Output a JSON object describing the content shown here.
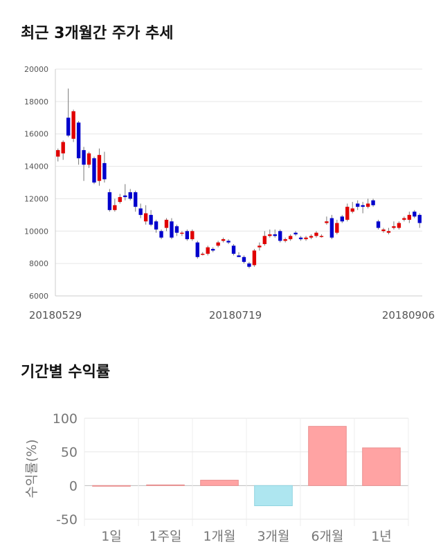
{
  "sections": {
    "price_title": "최근 3개월간 주가 추세",
    "returns_title": "기간별 수익률"
  },
  "chart_data": [
    {
      "type": "candlestick",
      "ylim": [
        6000,
        20000
      ],
      "yticks": [
        20000,
        18000,
        16000,
        14000,
        12000,
        10000,
        8000,
        6000
      ],
      "xticks": [
        "20180529",
        "20180719",
        "20180906"
      ],
      "colors": {
        "up": "#e00000",
        "down": "#0000cc"
      },
      "candles": [
        [
          14600,
          15000,
          14300,
          15100
        ],
        [
          14800,
          15500,
          14400,
          15600
        ],
        [
          17000,
          15900,
          15800,
          18800
        ],
        [
          15700,
          17400,
          15500,
          17500
        ],
        [
          16700,
          14500,
          14100,
          16800
        ],
        [
          15000,
          14100,
          13100,
          15200
        ],
        [
          14100,
          14800,
          13900,
          14900
        ],
        [
          14500,
          13000,
          12900,
          14600
        ],
        [
          13100,
          14700,
          12800,
          15100
        ],
        [
          14200,
          13200,
          13000,
          14900
        ],
        [
          12400,
          11300,
          11200,
          12600
        ],
        [
          11300,
          11600,
          11200,
          12000
        ],
        [
          11800,
          12100,
          11700,
          12300
        ],
        [
          12200,
          12100,
          11900,
          12900
        ],
        [
          12400,
          12000,
          11900,
          12600
        ],
        [
          12400,
          11500,
          11200,
          12500
        ],
        [
          11400,
          11000,
          10800,
          11700
        ],
        [
          10600,
          11100,
          10400,
          11600
        ],
        [
          11000,
          10400,
          10300,
          11300
        ],
        [
          10600,
          10100,
          9900,
          10700
        ],
        [
          10000,
          9600,
          9500,
          10100
        ],
        [
          10200,
          10700,
          10000,
          10800
        ],
        [
          10600,
          9600,
          9500,
          10800
        ],
        [
          10300,
          9900,
          9700,
          10400
        ],
        [
          9900,
          9900,
          9700,
          10000
        ],
        [
          10000,
          9500,
          9400,
          10100
        ],
        [
          9500,
          10000,
          9400,
          10100
        ],
        [
          9300,
          8400,
          8300,
          9400
        ],
        [
          8600,
          8600,
          8500,
          8700
        ],
        [
          8600,
          9000,
          8500,
          9100
        ],
        [
          8900,
          8800,
          8700,
          9000
        ],
        [
          9100,
          9300,
          9000,
          9400
        ],
        [
          9400,
          9500,
          9300,
          9600
        ],
        [
          9400,
          9300,
          9200,
          9500
        ],
        [
          9100,
          8600,
          8500,
          9200
        ],
        [
          8500,
          8400,
          8400,
          8700
        ],
        [
          8400,
          8100,
          8000,
          8500
        ],
        [
          8000,
          7800,
          7700,
          8100
        ],
        [
          7900,
          8800,
          7800,
          8900
        ],
        [
          9000,
          9100,
          8800,
          9300
        ],
        [
          9200,
          9700,
          9100,
          10000
        ],
        [
          9700,
          9800,
          9600,
          10100
        ],
        [
          9800,
          9700,
          9600,
          10100
        ],
        [
          10000,
          9400,
          9300,
          10100
        ],
        [
          9400,
          9500,
          9300,
          9600
        ],
        [
          9500,
          9700,
          9400,
          9800
        ],
        [
          9900,
          9800,
          9700,
          10000
        ],
        [
          9600,
          9500,
          9400,
          9700
        ],
        [
          9500,
          9600,
          9400,
          9700
        ],
        [
          9600,
          9700,
          9500,
          9800
        ],
        [
          9700,
          9900,
          9600,
          10000
        ],
        [
          9700,
          9700,
          9600,
          9800
        ],
        [
          10500,
          10600,
          10400,
          10900
        ],
        [
          10800,
          9600,
          9500,
          11000
        ],
        [
          9900,
          10500,
          9800,
          10700
        ],
        [
          10900,
          10600,
          10500,
          11000
        ],
        [
          10700,
          11500,
          10600,
          11700
        ],
        [
          11200,
          11400,
          11100,
          11800
        ],
        [
          11700,
          11500,
          11300,
          11900
        ],
        [
          11600,
          11500,
          11100,
          11800
        ],
        [
          11500,
          11700,
          11400,
          12000
        ],
        [
          11900,
          11600,
          11500,
          12000
        ],
        [
          10600,
          10200,
          10100,
          10700
        ],
        [
          10000,
          10100,
          9900,
          10200
        ],
        [
          9900,
          10000,
          9800,
          10200
        ],
        [
          10200,
          10300,
          10100,
          10600
        ],
        [
          10200,
          10500,
          10100,
          10600
        ],
        [
          10700,
          10800,
          10600,
          10900
        ],
        [
          10700,
          11000,
          10500,
          11200
        ],
        [
          11200,
          10900,
          10800,
          11300
        ],
        [
          11000,
          10500,
          10200,
          11100
        ]
      ]
    },
    {
      "type": "bar",
      "categories": [
        "1일",
        "1주일",
        "1개월",
        "3개월",
        "6개월",
        "1년"
      ],
      "values": [
        0,
        1,
        8,
        -30,
        88,
        56
      ],
      "ylabel": "수익률(%)",
      "ylim": [
        -50,
        100
      ],
      "yticks": [
        100,
        50,
        0,
        -50
      ],
      "colors": {
        "positive": "#ffa3a3",
        "negative": "#aee6f0"
      }
    }
  ]
}
